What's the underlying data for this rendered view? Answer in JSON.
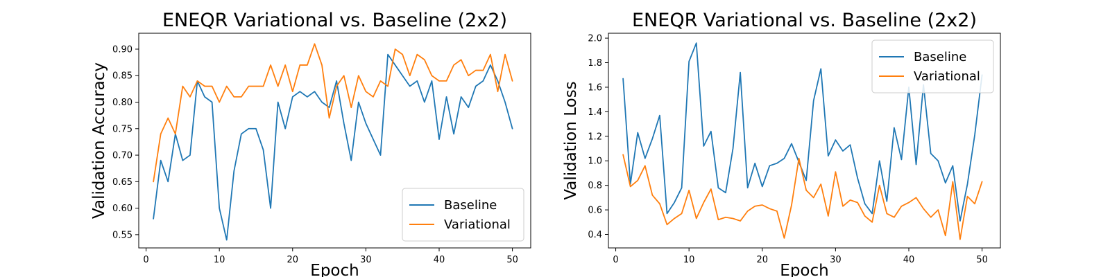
{
  "chart_data": [
    {
      "type": "line",
      "title": "ENEQR Variational vs. Baseline (2x2)",
      "xlabel": "Epoch",
      "ylabel": "Validation Accuracy",
      "xlim": [
        -1,
        52.5
      ],
      "ylim": [
        0.525,
        0.93
      ],
      "xticks": [
        0,
        10,
        20,
        30,
        40,
        50
      ],
      "yticks": [
        0.55,
        0.6,
        0.65,
        0.7,
        0.75,
        0.8,
        0.85,
        0.9
      ],
      "ytick_labels": [
        "0.55",
        "0.60",
        "0.65",
        "0.70",
        "0.75",
        "0.80",
        "0.85",
        "0.90"
      ],
      "legend_position": "lower-right",
      "grid": false,
      "x": [
        1,
        2,
        3,
        4,
        5,
        6,
        7,
        8,
        9,
        10,
        11,
        12,
        13,
        14,
        15,
        16,
        17,
        18,
        19,
        20,
        21,
        22,
        23,
        24,
        25,
        26,
        27,
        28,
        29,
        30,
        31,
        32,
        33,
        34,
        35,
        36,
        37,
        38,
        39,
        40,
        41,
        42,
        43,
        44,
        45,
        46,
        47,
        48,
        49,
        50
      ],
      "series": [
        {
          "name": "Baseline",
          "color": "#1f77b4",
          "values": [
            0.58,
            0.69,
            0.65,
            0.74,
            0.69,
            0.7,
            0.84,
            0.81,
            0.8,
            0.6,
            0.54,
            0.67,
            0.74,
            0.75,
            0.75,
            0.71,
            0.6,
            0.8,
            0.75,
            0.81,
            0.82,
            0.81,
            0.82,
            0.8,
            0.79,
            0.84,
            0.76,
            0.69,
            0.8,
            0.76,
            0.73,
            0.7,
            0.89,
            0.87,
            0.85,
            0.83,
            0.84,
            0.8,
            0.84,
            0.73,
            0.81,
            0.74,
            0.81,
            0.79,
            0.83,
            0.84,
            0.87,
            0.84,
            0.8,
            0.75
          ]
        },
        {
          "name": "Variational",
          "color": "#ff7f0e",
          "values": [
            0.65,
            0.74,
            0.77,
            0.74,
            0.83,
            0.81,
            0.84,
            0.83,
            0.83,
            0.8,
            0.83,
            0.81,
            0.81,
            0.83,
            0.83,
            0.83,
            0.87,
            0.83,
            0.87,
            0.82,
            0.87,
            0.87,
            0.91,
            0.87,
            0.77,
            0.83,
            0.85,
            0.79,
            0.85,
            0.82,
            0.81,
            0.84,
            0.83,
            0.9,
            0.89,
            0.85,
            0.89,
            0.88,
            0.85,
            0.84,
            0.84,
            0.87,
            0.88,
            0.85,
            0.86,
            0.86,
            0.89,
            0.82,
            0.89,
            0.84
          ]
        }
      ]
    },
    {
      "type": "line",
      "title": "ENEQR Variational vs. Baseline (2x2)",
      "xlabel": "Epoch",
      "ylabel": "Validation Loss",
      "xlim": [
        -1,
        52.5
      ],
      "ylim": [
        0.29,
        2.04
      ],
      "xticks": [
        0,
        10,
        20,
        30,
        40,
        50
      ],
      "yticks": [
        0.4,
        0.6,
        0.8,
        1.0,
        1.2,
        1.4,
        1.6,
        1.8,
        2.0
      ],
      "ytick_labels": [
        "0.4",
        "0.6",
        "0.8",
        "1.0",
        "1.2",
        "1.4",
        "1.6",
        "1.8",
        "2.0"
      ],
      "legend_position": "upper-right",
      "grid": false,
      "x": [
        1,
        2,
        3,
        4,
        5,
        6,
        7,
        8,
        9,
        10,
        11,
        12,
        13,
        14,
        15,
        16,
        17,
        18,
        19,
        20,
        21,
        22,
        23,
        24,
        25,
        26,
        27,
        28,
        29,
        30,
        31,
        32,
        33,
        34,
        35,
        36,
        37,
        38,
        39,
        40,
        41,
        42,
        43,
        44,
        45,
        46,
        47,
        48,
        49,
        50
      ],
      "series": [
        {
          "name": "Baseline",
          "color": "#1f77b4",
          "values": [
            1.67,
            0.81,
            1.23,
            1.02,
            1.18,
            1.37,
            0.57,
            0.66,
            0.78,
            1.81,
            1.96,
            1.12,
            1.24,
            0.78,
            0.74,
            1.1,
            1.72,
            0.78,
            0.98,
            0.79,
            0.96,
            0.98,
            1.02,
            1.14,
            0.99,
            0.84,
            1.49,
            1.75,
            1.04,
            1.17,
            1.08,
            1.13,
            0.86,
            0.65,
            0.57,
            1.0,
            0.67,
            1.27,
            1.01,
            1.6,
            0.97,
            1.62,
            1.06,
            1.0,
            0.82,
            0.96,
            0.51,
            0.81,
            1.21,
            1.7
          ]
        },
        {
          "name": "Variational",
          "color": "#ff7f0e",
          "values": [
            1.05,
            0.79,
            0.84,
            0.96,
            0.72,
            0.65,
            0.48,
            0.53,
            0.57,
            0.76,
            0.53,
            0.66,
            0.77,
            0.52,
            0.54,
            0.53,
            0.51,
            0.59,
            0.63,
            0.64,
            0.61,
            0.59,
            0.37,
            0.64,
            1.02,
            0.76,
            0.7,
            0.81,
            0.55,
            0.91,
            0.63,
            0.68,
            0.66,
            0.55,
            0.5,
            0.8,
            0.57,
            0.54,
            0.63,
            0.66,
            0.7,
            0.61,
            0.54,
            0.6,
            0.39,
            0.83,
            0.36,
            0.71,
            0.65,
            0.83
          ]
        }
      ]
    }
  ]
}
